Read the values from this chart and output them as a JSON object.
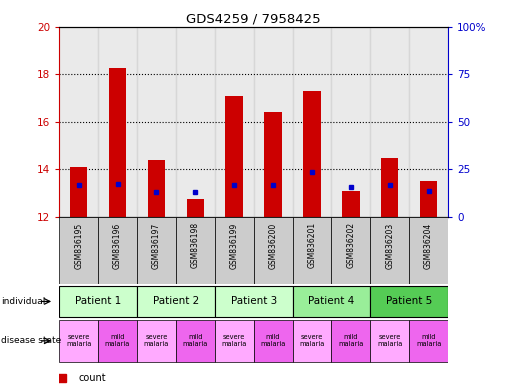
{
  "title": "GDS4259 / 7958425",
  "samples": [
    "GSM836195",
    "GSM836196",
    "GSM836197",
    "GSM836198",
    "GSM836199",
    "GSM836200",
    "GSM836201",
    "GSM836202",
    "GSM836203",
    "GSM836204"
  ],
  "bar_heights": [
    14.1,
    18.25,
    14.4,
    12.75,
    17.1,
    16.4,
    17.3,
    13.1,
    14.5,
    13.5
  ],
  "bar_base": 12,
  "blue_positions": [
    13.35,
    13.4,
    13.05,
    13.05,
    13.35,
    13.35,
    13.9,
    13.25,
    13.35,
    13.1
  ],
  "ylim_left": [
    12,
    20
  ],
  "ylim_right": [
    0,
    100
  ],
  "yticks_left": [
    12,
    14,
    16,
    18,
    20
  ],
  "yticks_right": [
    0,
    25,
    50,
    75,
    100
  ],
  "ytick_labels_left": [
    "12",
    "14",
    "16",
    "18",
    "20"
  ],
  "ytick_labels_right": [
    "0",
    "25",
    "50",
    "75",
    "100%"
  ],
  "bar_color": "#cc0000",
  "blue_color": "#0000cc",
  "grid_color": "#000000",
  "patients": [
    {
      "label": "Patient 1",
      "cols": [
        0,
        1
      ],
      "color": "#ccffcc"
    },
    {
      "label": "Patient 2",
      "cols": [
        2,
        3
      ],
      "color": "#ccffcc"
    },
    {
      "label": "Patient 3",
      "cols": [
        4,
        5
      ],
      "color": "#ccffcc"
    },
    {
      "label": "Patient 4",
      "cols": [
        6,
        7
      ],
      "color": "#99ee99"
    },
    {
      "label": "Patient 5",
      "cols": [
        8,
        9
      ],
      "color": "#55cc55"
    }
  ],
  "disease_states": [
    {
      "label": "severe\nmalaria",
      "col": 0,
      "color": "#ffaaff"
    },
    {
      "label": "mild\nmalaria",
      "col": 1,
      "color": "#ee66ee"
    },
    {
      "label": "severe\nmalaria",
      "col": 2,
      "color": "#ffaaff"
    },
    {
      "label": "mild\nmalaria",
      "col": 3,
      "color": "#ee66ee"
    },
    {
      "label": "severe\nmalaria",
      "col": 4,
      "color": "#ffaaff"
    },
    {
      "label": "mild\nmalaria",
      "col": 5,
      "color": "#ee66ee"
    },
    {
      "label": "severe\nmalaria",
      "col": 6,
      "color": "#ffaaff"
    },
    {
      "label": "mild\nmalaria",
      "col": 7,
      "color": "#ee66ee"
    },
    {
      "label": "severe\nmalaria",
      "col": 8,
      "color": "#ffaaff"
    },
    {
      "label": "mild\nmalaria",
      "col": 9,
      "color": "#ee66ee"
    }
  ],
  "legend_count_color": "#cc0000",
  "legend_percentile_color": "#0000cc",
  "left_label_color": "#cc0000",
  "right_label_color": "#0000cc",
  "sample_bg_color": "#cccccc"
}
